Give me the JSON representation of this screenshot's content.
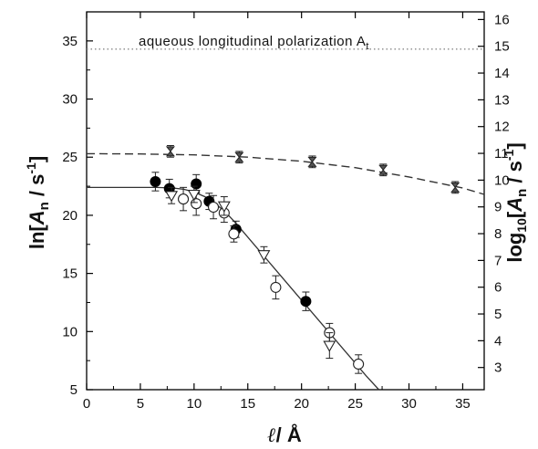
{
  "chart_data": {
    "type": "scatter",
    "annotation": "aqueous longitudinal polarization A",
    "annotation_subscript": "t",
    "xlabel_parts": [
      "ℓ",
      "/ Å"
    ],
    "ylabel_left_parts": [
      "ln[",
      "A",
      "n",
      " / s",
      "-1",
      "]"
    ],
    "ylabel_right_parts": [
      "log",
      "10",
      "[",
      "A",
      "n",
      " / s",
      "-1",
      "]"
    ],
    "xlim": [
      0,
      37
    ],
    "ylim_left": [
      5,
      37.5
    ],
    "ylim_right_ticks": [
      3,
      4,
      5,
      6,
      7,
      8,
      9,
      10,
      11,
      12,
      13,
      14,
      15,
      16
    ],
    "x_ticks": [
      0,
      5,
      10,
      15,
      20,
      25,
      30,
      35
    ],
    "y_ticks_left": [
      5,
      10,
      15,
      20,
      25,
      30,
      35
    ],
    "grid": false,
    "series": [
      {
        "marker": "filled-circle",
        "points": [
          {
            "x": 6.4,
            "y": 22.9,
            "err": 0.8
          },
          {
            "x": 7.7,
            "y": 22.3,
            "err": 0.8
          },
          {
            "x": 10.2,
            "y": 22.7,
            "err": 0.8
          },
          {
            "x": 11.4,
            "y": 21.2,
            "err": 0.7
          },
          {
            "x": 13.9,
            "y": 18.8,
            "err": 0.7
          },
          {
            "x": 20.4,
            "y": 12.6,
            "err": 0.8
          }
        ]
      },
      {
        "marker": "open-circle",
        "points": [
          {
            "x": 9.0,
            "y": 21.4,
            "err": 1.0
          },
          {
            "x": 10.2,
            "y": 21.0,
            "err": 1.0
          },
          {
            "x": 11.8,
            "y": 20.7,
            "err": 1.0
          },
          {
            "x": 12.8,
            "y": 20.2,
            "err": 0.8
          },
          {
            "x": 13.7,
            "y": 18.4,
            "err": 0.7
          },
          {
            "x": 17.6,
            "y": 13.8,
            "err": 1.0
          },
          {
            "x": 22.6,
            "y": 9.9,
            "err": 0.8
          },
          {
            "x": 25.3,
            "y": 7.2,
            "err": 0.8
          }
        ]
      },
      {
        "marker": "open-triangle-down",
        "points": [
          {
            "x": 7.9,
            "y": 21.7,
            "err": 0.7
          },
          {
            "x": 10.0,
            "y": 21.8,
            "err": 0.7
          },
          {
            "x": 12.8,
            "y": 20.8,
            "err": 0.8
          },
          {
            "x": 16.5,
            "y": 16.6,
            "err": 0.7
          },
          {
            "x": 22.6,
            "y": 8.8,
            "err": 1.1
          }
        ]
      },
      {
        "marker": "bowtie",
        "points": [
          {
            "x": 7.8,
            "y": 25.5,
            "err": 0.5
          },
          {
            "x": 14.2,
            "y": 25.0,
            "err": 0.5
          },
          {
            "x": 21.0,
            "y": 24.6,
            "err": 0.5
          },
          {
            "x": 27.6,
            "y": 23.9,
            "err": 0.5
          },
          {
            "x": 34.3,
            "y": 22.4,
            "err": 0.5
          }
        ]
      }
    ],
    "fits": [
      {
        "style": "solid",
        "x": [
          0,
          6.5,
          8,
          9,
          10,
          11,
          12,
          13,
          14,
          20,
          26,
          27.2
        ],
        "y": [
          22.4,
          22.4,
          22.35,
          22.25,
          22.0,
          21.6,
          21.0,
          20.2,
          19.2,
          12.7,
          6.2,
          5.0
        ]
      },
      {
        "style": "dashed",
        "x": [
          0,
          5,
          10,
          15,
          20,
          25,
          30,
          35,
          37
        ],
        "y": [
          25.3,
          25.28,
          25.2,
          25.0,
          24.65,
          24.1,
          23.3,
          22.35,
          21.8
        ]
      },
      {
        "style": "dotted",
        "x": [
          0,
          37
        ],
        "y": [
          34.3,
          34.3
        ]
      }
    ]
  }
}
